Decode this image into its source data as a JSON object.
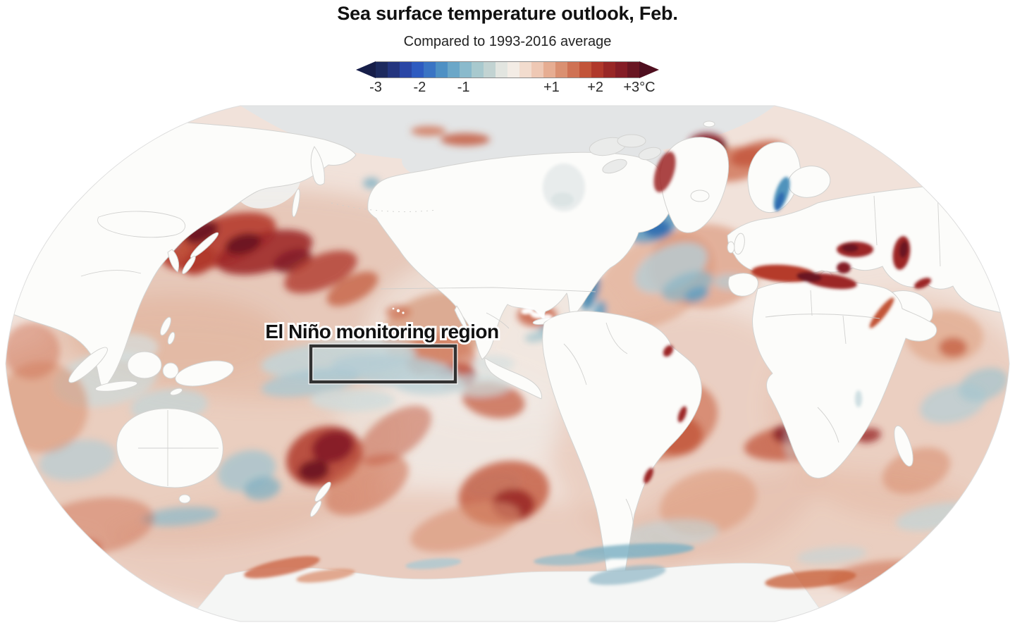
{
  "header": {
    "title": "Sea surface temperature outlook, Feb.",
    "subtitle": "Compared to 1993-2016 average"
  },
  "legend": {
    "unit": "°C",
    "ticks": [
      {
        "label": "-3",
        "pos": 0
      },
      {
        "label": "-2",
        "pos": 0.1667
      },
      {
        "label": "-1",
        "pos": 0.3333
      },
      {
        "label": "+1",
        "pos": 0.6667
      },
      {
        "label": "+2",
        "pos": 0.8333
      },
      {
        "label": "+3°C",
        "pos": 1.0
      }
    ],
    "left_tip": "#171e49",
    "right_tip": "#4f0f1f",
    "segments": [
      "#1d2a5e",
      "#24357e",
      "#2a46a5",
      "#2e5bc0",
      "#3a74c4",
      "#4e90c4",
      "#6ba7c8",
      "#8abacc",
      "#a8c9ce",
      "#c2d3d2",
      "#e2e5e0",
      "#f3ece5",
      "#f2dcce",
      "#eec8b4",
      "#e6ad92",
      "#da9071",
      "#cf7254",
      "#c25439",
      "#b0382b",
      "#982726",
      "#841d26",
      "#691622"
    ]
  },
  "map": {
    "annotation_label": "El Niño monitoring region",
    "colors": {
      "land": "#fcfcfa",
      "ocean_base": "#f1e2da",
      "polar_gray": "#e3e5e6",
      "antarctica": "#f5f6f5",
      "country_border": "#cdcdcb",
      "monitor_box": "#323232",
      "warm_extreme": "#691622",
      "cool_extreme": "#2f6bb0"
    }
  }
}
